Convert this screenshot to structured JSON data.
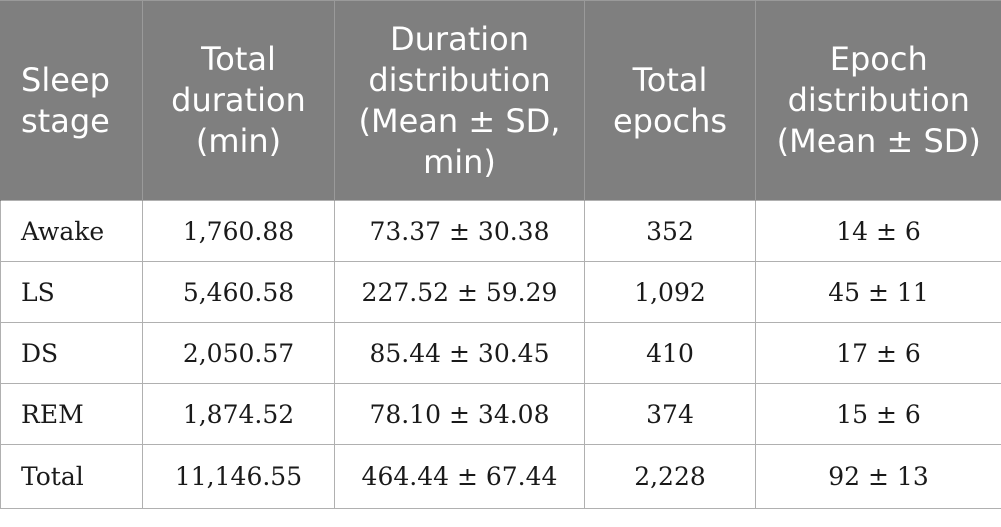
{
  "table": {
    "headers": [
      "Sleep stage",
      "Total duration (min)",
      "Duration distribution (Mean ± SD, min)",
      "Total epochs",
      "Epoch distribution (Mean ± SD)"
    ],
    "rows": [
      [
        "Awake",
        "1,760.88",
        "73.37 ± 30.38",
        "352",
        "14 ± 6"
      ],
      [
        "LS",
        "5,460.58",
        "227.52 ± 59.29",
        "1,092",
        "45 ± 11"
      ],
      [
        "DS",
        "2,050.57",
        "85.44 ± 30.45",
        "410",
        "17 ± 6"
      ],
      [
        "REM",
        "1,874.52",
        "78.10 ± 34.08",
        "374",
        "15 ± 6"
      ],
      [
        "Total",
        "11,146.55",
        "464.44 ± 67.44",
        "2,228",
        "92 ± 13"
      ]
    ]
  },
  "colors": {
    "header_bg": "#7f7f7f",
    "header_text": "#ffffff",
    "border": "#b0b0b0"
  }
}
